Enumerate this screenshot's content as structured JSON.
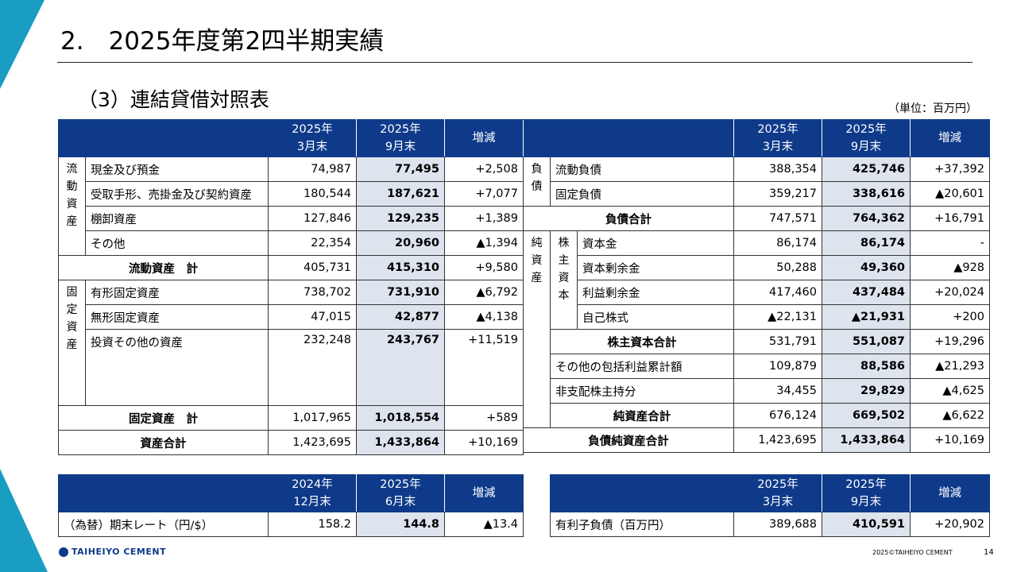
{
  "page": {
    "title": "2.　2025年度第2四半期実績",
    "subtitle": "（3）連結貸借対照表",
    "unit": "（単位：百万円）",
    "copyright": "2025©TAIHEIYO CEMENT",
    "page_number": "14",
    "brand": "TAIHEIYO CEMENT",
    "colors": {
      "header": "#0f3a8a",
      "highlight": "#dde4ee",
      "accent": "#1a9dc3"
    }
  },
  "bs": {
    "hdr": {
      "p1a": "2025年",
      "p1b": "3月末",
      "p2a": "2025年",
      "p2b": "9月末",
      "chg": "増減"
    },
    "left": {
      "cat_current": "流\n動\n資\n産",
      "cat_fixed": "固\n定\n資\n産",
      "r1": {
        "label": "現金及び預金",
        "a": "74,987",
        "b": "77,495",
        "c": "+2,508"
      },
      "r2": {
        "label": "受取手形、売掛金及び契約資産",
        "a": "180,544",
        "b": "187,621",
        "c": "+7,077"
      },
      "r3": {
        "label": "棚卸資産",
        "a": "127,846",
        "b": "129,235",
        "c": "+1,389"
      },
      "r4": {
        "label": "その他",
        "a": "22,354",
        "b": "20,960",
        "c": "▲1,394"
      },
      "r5": {
        "label": "流動資産　計",
        "a": "405,731",
        "b": "415,310",
        "c": "+9,580"
      },
      "r6": {
        "label": "有形固定資産",
        "a": "738,702",
        "b": "731,910",
        "c": "▲6,792"
      },
      "r7": {
        "label": "無形固定資産",
        "a": "47,015",
        "b": "42,877",
        "c": "▲4,138"
      },
      "r8": {
        "label": "投資その他の資産",
        "a": "232,248",
        "b": "243,767",
        "c": "+11,519"
      },
      "r9": {
        "label": "固定資産　計",
        "a": "1,017,965",
        "b": "1,018,554",
        "c": "+589"
      },
      "r10": {
        "label": "資産合計",
        "a": "1,423,695",
        "b": "1,433,864",
        "c": "+10,169"
      }
    },
    "right": {
      "cat_liab": "負\n債",
      "cat_net": "純\n資\n産",
      "cat_equity": "株\n主\n資\n本",
      "r1": {
        "label": "流動負債",
        "a": "388,354",
        "b": "425,746",
        "c": "+37,392"
      },
      "r2": {
        "label": "固定負債",
        "a": "359,217",
        "b": "338,616",
        "c": "▲20,601"
      },
      "r3": {
        "label": "負債合計",
        "a": "747,571",
        "b": "764,362",
        "c": "+16,791"
      },
      "r4": {
        "label": "資本金",
        "a": "86,174",
        "b": "86,174",
        "c": "-"
      },
      "r5": {
        "label": "資本剰余金",
        "a": "50,288",
        "b": "49,360",
        "c": "▲928"
      },
      "r6": {
        "label": "利益剰余金",
        "a": "417,460",
        "b": "437,484",
        "c": "+20,024"
      },
      "r7": {
        "label": "自己株式",
        "a": "▲22,131",
        "b": "▲21,931",
        "c": "+200"
      },
      "r8": {
        "label": "株主資本合計",
        "a": "531,791",
        "b": "551,087",
        "c": "+19,296"
      },
      "r9": {
        "label": "その他の包括利益累計額",
        "a": "109,879",
        "b": "88,586",
        "c": "▲21,293"
      },
      "r10": {
        "label": "非支配株主持分",
        "a": "34,455",
        "b": "29,829",
        "c": "▲4,625"
      },
      "r11": {
        "label": "純資産合計",
        "a": "676,124",
        "b": "669,502",
        "c": "▲6,622"
      },
      "r12": {
        "label": "負債純資産合計",
        "a": "1,423,695",
        "b": "1,433,864",
        "c": "+10,169"
      }
    }
  },
  "fx": {
    "hdr": {
      "p1a": "2024年",
      "p1b": "12月末",
      "p2a": "2025年",
      "p2b": "6月末",
      "chg": "増減"
    },
    "label": "（為替）期末レート（円/$）",
    "a": "158.2",
    "b": "144.8",
    "c": "▲13.4"
  },
  "debt": {
    "hdr": {
      "p1a": "2025年",
      "p1b": "3月末",
      "p2a": "2025年",
      "p2b": "9月末",
      "chg": "増減"
    },
    "label": "有利子負債（百万円）",
    "a": "389,688",
    "b": "410,591",
    "c": "+20,902"
  }
}
